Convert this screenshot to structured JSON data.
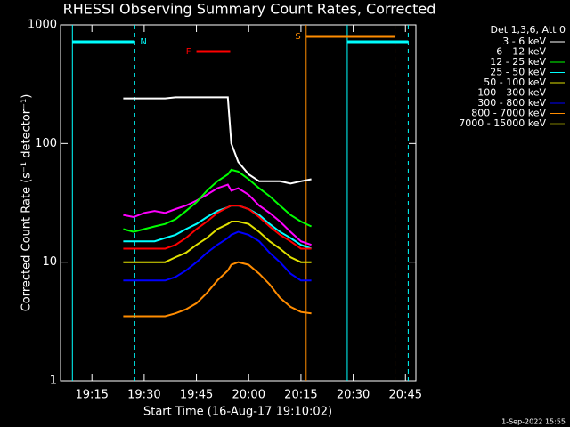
{
  "chart_data": {
    "type": "line",
    "title": "RHESSI Observing Summary Count Rates, Corrected",
    "x_label": "Start Time (16-Aug-17 19:10:02)",
    "y_label": "Corrected Count Rate (s⁻¹ detector⁻¹)",
    "legend_title": "Det 1,3,6, Att 0",
    "footer": "1-Sep-2022 15:55",
    "log_y": true,
    "xlim": [
      6,
      108
    ],
    "ylim": [
      1,
      1000
    ],
    "xticks": [
      {
        "value": 15,
        "label": "19:15"
      },
      {
        "value": 30,
        "label": "19:30"
      },
      {
        "value": 45,
        "label": "19:45"
      },
      {
        "value": 60,
        "label": "20:00"
      },
      {
        "value": 75,
        "label": "20:15"
      },
      {
        "value": 90,
        "label": "20:30"
      },
      {
        "value": 105,
        "label": "20:45"
      }
    ],
    "yticks": [
      1,
      10,
      100,
      1000
    ],
    "x": [
      24,
      27,
      30,
      33,
      36,
      39,
      42,
      45,
      48,
      51,
      54,
      55,
      57,
      60,
      63,
      66,
      69,
      72,
      75,
      78
    ],
    "series": [
      {
        "name": "3 - 6 keV",
        "color": "#000000",
        "values": [
          240,
          240,
          240,
          240,
          240,
          245,
          245,
          245,
          245,
          245,
          245,
          100,
          70,
          55,
          48,
          48,
          48,
          46,
          48,
          50
        ]
      },
      {
        "name": "6 - 12 keV",
        "color": "#ff00ff",
        "values": [
          25,
          24,
          26,
          27,
          26,
          28,
          30,
          33,
          37,
          42,
          45,
          40,
          42,
          37,
          30,
          26,
          22,
          18,
          15,
          14
        ]
      },
      {
        "name": "12 - 25 keV",
        "color": "#00ff00",
        "values": [
          19,
          18,
          19,
          20,
          21,
          23,
          27,
          32,
          40,
          48,
          55,
          60,
          58,
          50,
          42,
          36,
          30,
          25,
          22,
          20
        ]
      },
      {
        "name": "25 - 50 keV",
        "color": "#00ffff",
        "values": [
          15,
          15,
          15,
          15,
          16,
          17,
          19,
          21,
          24,
          27,
          29,
          30,
          30,
          28,
          25,
          21,
          18,
          16,
          14,
          13
        ]
      },
      {
        "name": "50 - 100 keV",
        "color": "#e0e000",
        "values": [
          10,
          10,
          10,
          10,
          10,
          11,
          12,
          14,
          16,
          19,
          21,
          22,
          22,
          21,
          18,
          15,
          13,
          11,
          10,
          10
        ]
      },
      {
        "name": "100 - 300 keV",
        "color": "#ff0000",
        "values": [
          13,
          13,
          13,
          13,
          13,
          14,
          16,
          19,
          22,
          26,
          29,
          30,
          30,
          28,
          24,
          20,
          17,
          15,
          13,
          13
        ]
      },
      {
        "name": "300 - 800 keV",
        "color": "#0000ff",
        "values": [
          7,
          7,
          7,
          7,
          7,
          7.5,
          8.5,
          10,
          12,
          14,
          16,
          17,
          18,
          17,
          15,
          12,
          10,
          8,
          7,
          7
        ]
      },
      {
        "name": "800 - 7000 keV",
        "color": "#ff8c00",
        "values": [
          3.5,
          3.5,
          3.5,
          3.5,
          3.5,
          3.7,
          4,
          4.5,
          5.5,
          7,
          8.5,
          9.5,
          10,
          9.5,
          8,
          6.5,
          5,
          4.2,
          3.8,
          3.7
        ]
      },
      {
        "name": "7000 - 15000 keV",
        "color": "#808000",
        "values": [
          null,
          null,
          null,
          null,
          null,
          null,
          null,
          null,
          null,
          null,
          null,
          null,
          null,
          null,
          null,
          null,
          null,
          null,
          null,
          null
        ]
      }
    ],
    "flags": [
      {
        "label": "N",
        "label_side": "end",
        "color": "#00ffff",
        "start": 9.4,
        "end": 27.3,
        "lines": true
      },
      {
        "color": "#00ffff",
        "start": 88.3,
        "end": 105.8,
        "lines": true
      },
      {
        "label": "S",
        "label_side": "start",
        "color": "#ff8c00",
        "start": 76.5,
        "end": 102,
        "lines": true
      },
      {
        "label": "F",
        "label_side": "start",
        "color": "#ff0000",
        "start": 45,
        "end": 54.7,
        "lines": false
      }
    ]
  }
}
